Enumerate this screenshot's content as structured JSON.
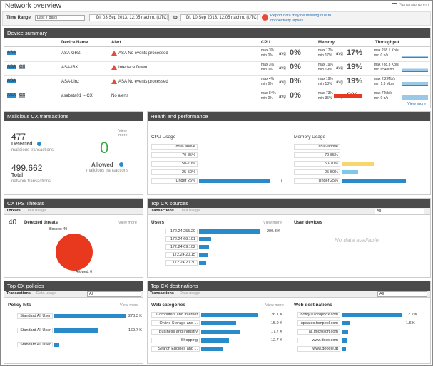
{
  "header": {
    "title": "Network overview",
    "generate": "Generate report",
    "time_range_label": "Time Range",
    "time_range": "Last 7 days",
    "from": "Di. 03 Sep 2013, 12:05 nachm. (UTC)",
    "to_label": "to",
    "to": "Di. 10 Sep 2013, 12:05 nachm. (UTC)",
    "warning": "Report data may be missing due to connectivity lapses"
  },
  "device_summary": {
    "title": "Device summary",
    "columns": [
      "Device Name",
      "Alert",
      "CPU",
      "Memory",
      "Throughput"
    ],
    "avg_label": "avg",
    "view_more": "View more",
    "rows": [
      {
        "badges": [
          "ASA"
        ],
        "name": "ASA-GRZ",
        "alert": "ASA No events processed",
        "cpu_max": "max 3%",
        "cpu_min": "min 0%",
        "cpu_avg": "0%",
        "mem_max": "max 17%",
        "mem_min": "min 17%",
        "mem_avg": "17%",
        "tp_max": "max 258.1 Kb/s",
        "tp_min": "min 0 b/s"
      },
      {
        "badges": [
          "ASA",
          "CX"
        ],
        "name": "ASA-IBK",
        "alert": "Interface Down",
        "cpu_max": "max 3%",
        "cpu_min": "min 0%",
        "cpu_avg": "0%",
        "mem_max": "max 19%",
        "mem_min": "min 19%",
        "mem_avg": "19%",
        "tp_max": "max 788.3 Kb/s",
        "tp_min": "min 654 Kb/s"
      },
      {
        "badges": [
          "ASA"
        ],
        "name": "ASA-Linz",
        "alert": "ASA No events processed",
        "cpu_max": "max 4%",
        "cpu_min": "min 0%",
        "cpu_avg": "0%",
        "mem_max": "max 19%",
        "mem_min": "min 18%",
        "mem_avg": "19%",
        "tp_max": "max 2.2 Mb/s",
        "tp_min": "min 1.6 Mb/s"
      },
      {
        "badges": [
          "ASA",
          "CX"
        ],
        "name": "asabeta01 -- CX",
        "alert": "No alerts",
        "cpu_max": "max 84%",
        "cpu_min": "min 0%",
        "cpu_avg": "0%",
        "mem_max": "max 73%",
        "mem_min": "min 35%",
        "mem_avg": "0%",
        "tp_max": "max 7 Mb/s",
        "tp_min": "min 0 b/s"
      }
    ]
  },
  "malicious": {
    "title": "Malicious CX transactions",
    "detected": "477",
    "detected_label": "Detected",
    "detected_sub": "malicious transactions",
    "total": "499.662",
    "total_label": "Total",
    "total_sub": "network transactions",
    "view_more": "View more",
    "allowed": "0",
    "allowed_label": "Allowed",
    "allowed_sub": "malicious transactions"
  },
  "health": {
    "title": "Health and performance",
    "cpu": {
      "title": "CPU Usage",
      "labels": [
        "85% above",
        "70-85%",
        "50-70%",
        "25-50%",
        "Under 25%"
      ],
      "values": [
        0,
        0,
        0,
        0,
        7
      ],
      "value_labels": [
        null,
        null,
        null,
        null,
        "7"
      ],
      "colors": [
        "#2a8bcb",
        "#2a8bcb",
        "#2a8bcb",
        "#2a8bcb",
        "#2a8bcb"
      ]
    },
    "memory": {
      "title": "Memory Usage",
      "labels": [
        "85% above",
        "70-85%",
        "50-70%",
        "25-50%",
        "Under 25%"
      ],
      "values": [
        0,
        0,
        2,
        1,
        4
      ],
      "colors": [
        "#2a8bcb",
        "#2a8bcb",
        "#f5d76e",
        "#7ec8ea",
        "#2a8bcb"
      ]
    }
  },
  "ips": {
    "title": "CX IPS Threats",
    "tabs": [
      "Threats",
      "Data usage"
    ],
    "count": "40",
    "count_label": "Detected threats",
    "view_more": "View more",
    "pie": {
      "values": [
        40,
        0
      ],
      "labels": [
        "Blocked: 40",
        "Allowed: 0"
      ],
      "colors": [
        "#e8391e",
        "#2a8bcb"
      ]
    }
  },
  "sources": {
    "title": "Top CX sources",
    "tabs": [
      "Transactions",
      "Data usage"
    ],
    "select": "All",
    "users": "Users",
    "view_more": "View more",
    "user_devices": "User devices",
    "no_data": "No data available",
    "bars": {
      "labels": [
        "172.24.255.20",
        "172.24.69.191",
        "172.24.69.102",
        "172.24.20.15",
        "172.24.20.30"
      ],
      "values": [
        200.3,
        40,
        33,
        28,
        24
      ],
      "value_labels": [
        "200.3 K",
        null,
        null,
        null,
        null
      ]
    }
  },
  "policies": {
    "title": "Top CX policies",
    "tabs": [
      "Transactions",
      "Data usage"
    ],
    "select": "All",
    "heading": "Policy hits",
    "view_more": "View more",
    "bars": {
      "labels": [
        "Standard All User",
        "Standard All User",
        "Standard All User"
      ],
      "values": [
        273.3,
        169.7,
        20
      ],
      "value_labels": [
        "273.3 K",
        "169.7 K",
        null
      ]
    }
  },
  "destinations": {
    "title": "Top CX destinations",
    "tabs": [
      "Transactions",
      "Data usage"
    ],
    "select": "All",
    "categories_heading": "Web categories",
    "destinations_heading": "Web destinations",
    "view_more": "View more",
    "categories": {
      "labels": [
        "Computers and Internet",
        "Online Storage and ...",
        "Business and Industry",
        "Shopping",
        "Search Engines and ..."
      ],
      "values": [
        26.1,
        15.9,
        17.7,
        12.7,
        10
      ],
      "value_labels": [
        "26.1 K",
        "15.9 K",
        "17.7 K",
        "12.7 K",
        null
      ]
    },
    "destinations": {
      "labels": [
        "notify10.dropbox.com",
        "updates.tcmpool.com",
        "all.microsoft.com",
        "www.dsco.com",
        "www.google.at"
      ],
      "values": [
        12.2,
        1.6,
        1.3,
        1.1,
        0.8
      ],
      "value_labels": [
        "12.2 K",
        "1.6 K",
        null,
        null,
        null
      ]
    }
  }
}
